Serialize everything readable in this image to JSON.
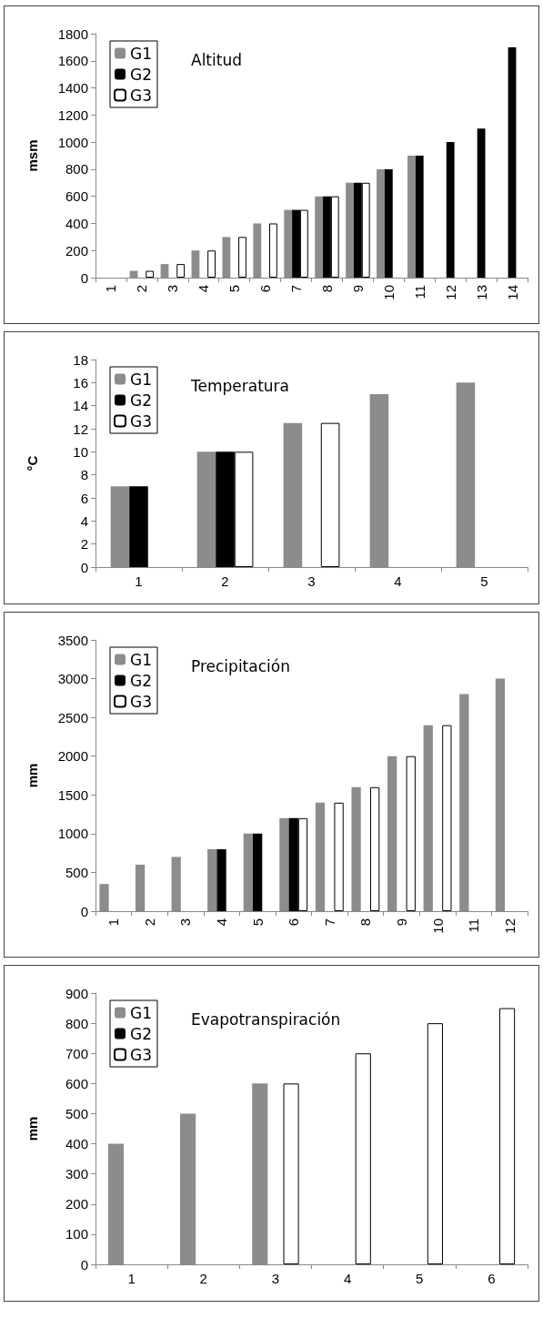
{
  "chart_data": [
    {
      "type": "bar",
      "title": "Altitud",
      "ylabel": "msm",
      "categories": [
        "1",
        "2",
        "3",
        "4",
        "5",
        "6",
        "7",
        "8",
        "9",
        "10",
        "11",
        "12",
        "13",
        "14"
      ],
      "series": [
        {
          "name": "G1",
          "color": "#8c8c8c",
          "values": [
            null,
            50,
            100,
            200,
            300,
            400,
            500,
            600,
            700,
            800,
            900,
            null,
            null,
            null
          ]
        },
        {
          "name": "G2",
          "color": "#000000",
          "values": [
            null,
            null,
            null,
            null,
            null,
            null,
            500,
            600,
            700,
            800,
            900,
            1000,
            1100,
            1700
          ]
        },
        {
          "name": "G3",
          "color": "#ffffff",
          "values": [
            null,
            50,
            100,
            200,
            300,
            400,
            500,
            600,
            700,
            null,
            null,
            null,
            null,
            null
          ]
        }
      ],
      "ylim": [
        0,
        1800
      ],
      "yticks": [
        0,
        200,
        400,
        600,
        800,
        1000,
        1200,
        1400,
        1600,
        1800
      ],
      "grid": false,
      "legend": "top left"
    },
    {
      "type": "bar",
      "title": "Temperatura",
      "ylabel": "°C",
      "categories": [
        "1",
        "2",
        "3",
        "4",
        "5"
      ],
      "series": [
        {
          "name": "G1",
          "color": "#8c8c8c",
          "values": [
            7,
            10,
            12.5,
            15,
            16
          ]
        },
        {
          "name": "G2",
          "color": "#000000",
          "values": [
            7,
            10,
            null,
            null,
            null
          ]
        },
        {
          "name": "G3",
          "color": "#ffffff",
          "values": [
            null,
            10,
            12.5,
            null,
            null
          ]
        }
      ],
      "ylim": [
        0,
        18
      ],
      "yticks": [
        0,
        2,
        4,
        6,
        8,
        10,
        12,
        14,
        16,
        18
      ],
      "grid": false,
      "legend": "top left"
    },
    {
      "type": "bar",
      "title": "Precipitación",
      "ylabel": "mm",
      "categories": [
        "1",
        "2",
        "3",
        "4",
        "5",
        "6",
        "7",
        "8",
        "9",
        "10",
        "11",
        "12"
      ],
      "series": [
        {
          "name": "G1",
          "color": "#8c8c8c",
          "values": [
            350,
            600,
            700,
            800,
            1000,
            1200,
            1400,
            1600,
            2000,
            2400,
            2800,
            3000
          ]
        },
        {
          "name": "G2",
          "color": "#000000",
          "values": [
            null,
            null,
            null,
            800,
            1000,
            1200,
            null,
            null,
            null,
            null,
            null,
            null
          ]
        },
        {
          "name": "G3",
          "color": "#ffffff",
          "values": [
            null,
            null,
            null,
            null,
            null,
            1200,
            1400,
            1600,
            2000,
            2400,
            null,
            null
          ]
        }
      ],
      "ylim": [
        0,
        3500
      ],
      "yticks": [
        0,
        500,
        1000,
        1500,
        2000,
        2500,
        3000,
        3500
      ],
      "grid": false,
      "legend": "top left"
    },
    {
      "type": "bar",
      "title": "Evapotranspiración",
      "ylabel": "mm",
      "categories": [
        "1",
        "2",
        "3",
        "4",
        "5",
        "6"
      ],
      "series": [
        {
          "name": "G1",
          "color": "#8c8c8c",
          "values": [
            400,
            500,
            600,
            null,
            null,
            null
          ]
        },
        {
          "name": "G2",
          "color": "#000000",
          "values": [
            null,
            null,
            null,
            null,
            null,
            null
          ]
        },
        {
          "name": "G3",
          "color": "#ffffff",
          "values": [
            null,
            null,
            600,
            700,
            800,
            850
          ]
        }
      ],
      "ylim": [
        0,
        900
      ],
      "yticks": [
        0,
        100,
        200,
        300,
        400,
        500,
        600,
        700,
        800,
        900
      ],
      "grid": false,
      "legend": "top left"
    }
  ]
}
